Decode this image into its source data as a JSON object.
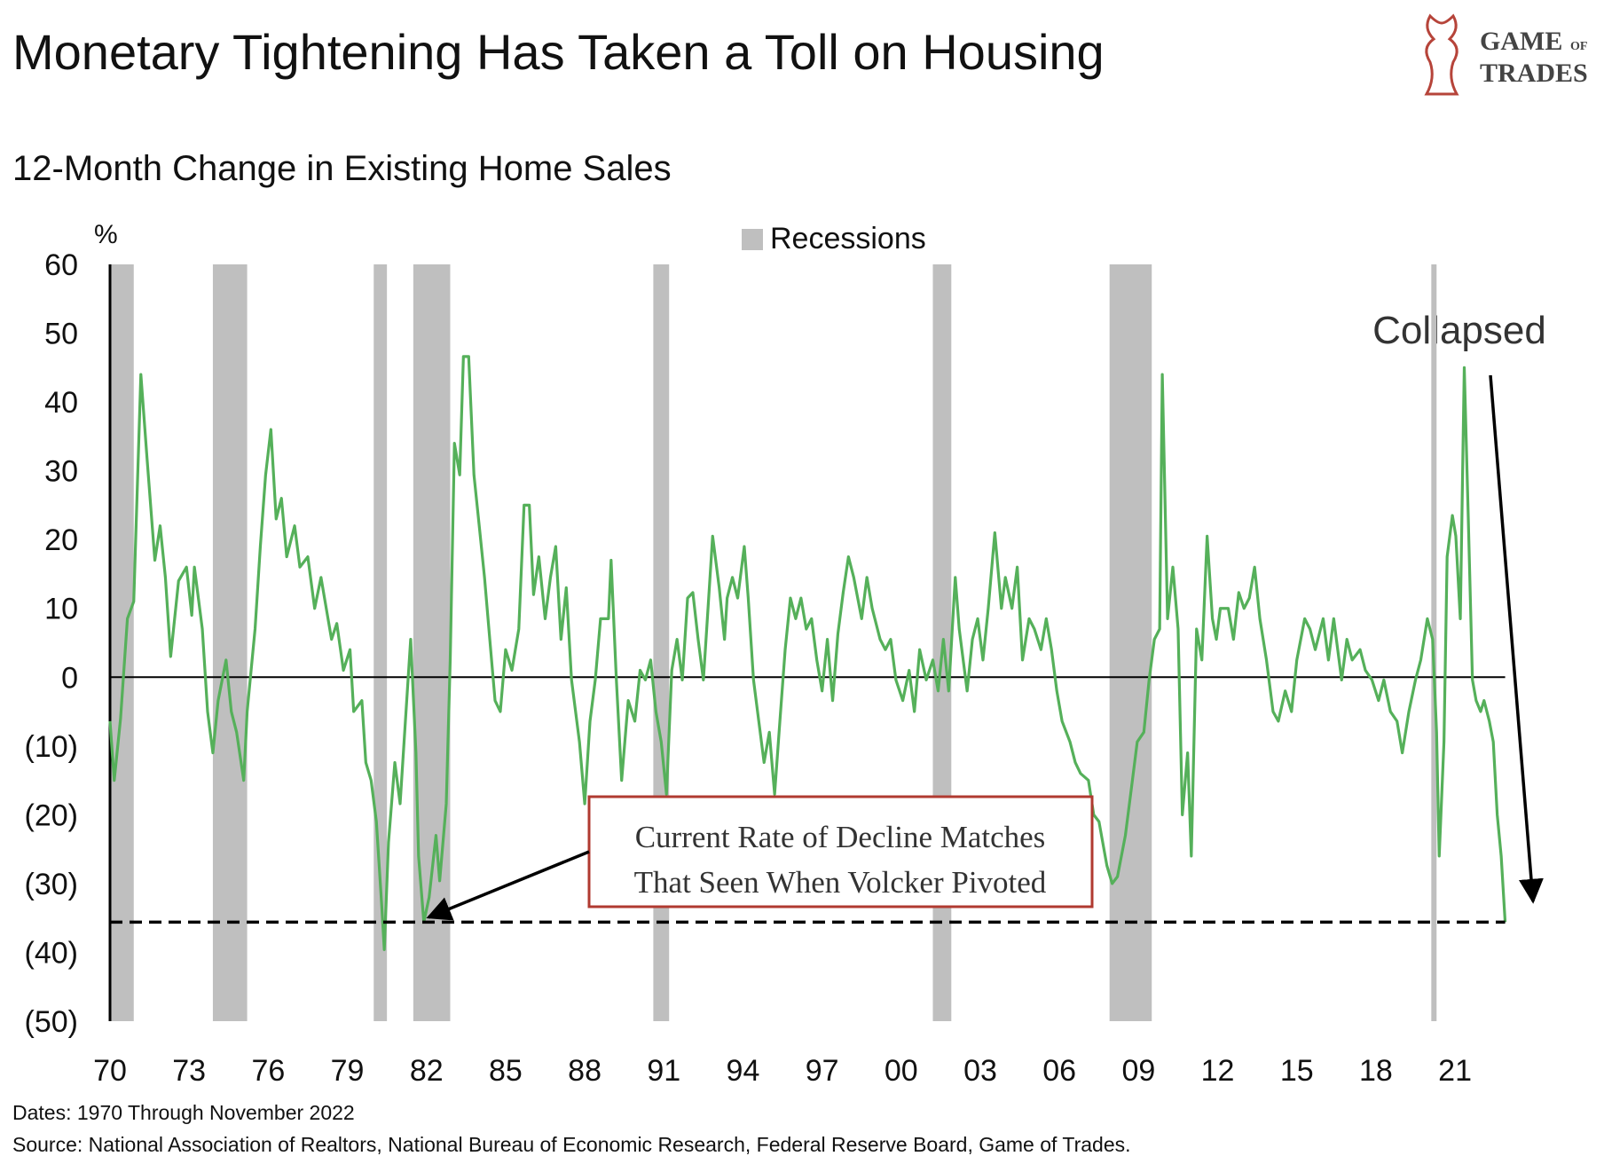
{
  "chart_data": {
    "type": "line",
    "title": "Monetary Tightening Has Taken a Toll on Housing",
    "subtitle": "12-Month Change in Existing Home Sales",
    "y_unit": "%",
    "logo": [
      "GAME",
      "OF",
      "TRADES"
    ],
    "color": "#55b05a",
    "x": [
      1970.0,
      1970.16,
      1970.4,
      1970.66,
      1970.9,
      1971.17,
      1971.4,
      1971.7,
      1971.9,
      1972.1,
      1972.3,
      1972.6,
      1972.9,
      1973.1,
      1973.2,
      1973.5,
      1973.7,
      1973.9,
      1974.1,
      1974.4,
      1974.6,
      1974.8,
      1975.07,
      1975.2,
      1975.5,
      1975.7,
      1975.9,
      1976.1,
      1976.3,
      1976.5,
      1976.7,
      1977.0,
      1977.2,
      1977.5,
      1977.76,
      1978.0,
      1978.2,
      1978.4,
      1978.6,
      1978.85,
      1979.1,
      1979.24,
      1979.55,
      1979.7,
      1979.9,
      1980.1,
      1980.3,
      1980.4,
      1980.56,
      1980.8,
      1981.0,
      1981.2,
      1981.4,
      1981.6,
      1981.7,
      1981.9,
      1982.1,
      1982.36,
      1982.5,
      1982.75,
      1982.9,
      1983.06,
      1983.26,
      1983.4,
      1983.6,
      1983.8,
      1984.0,
      1984.2,
      1984.4,
      1984.6,
      1984.8,
      1985.0,
      1985.24,
      1985.5,
      1985.7,
      1985.9,
      1986.06,
      1986.26,
      1986.5,
      1986.7,
      1986.9,
      1987.1,
      1987.3,
      1987.5,
      1987.8,
      1988.0,
      1988.2,
      1988.4,
      1988.6,
      1988.9,
      1989.0,
      1989.2,
      1989.4,
      1989.65,
      1989.9,
      1990.1,
      1990.3,
      1990.5,
      1990.7,
      1990.9,
      1991.1,
      1991.3,
      1991.5,
      1991.7,
      1991.9,
      1992.1,
      1992.3,
      1992.5,
      1992.65,
      1992.85,
      1993.1,
      1993.3,
      1993.4,
      1993.6,
      1993.8,
      1994.05,
      1994.2,
      1994.4,
      1994.6,
      1994.8,
      1995.0,
      1995.2,
      1995.4,
      1995.6,
      1995.8,
      1996.0,
      1996.2,
      1996.4,
      1996.6,
      1996.8,
      1997.0,
      1997.2,
      1997.4,
      1997.6,
      1997.8,
      1998.0,
      1998.2,
      1998.5,
      1998.7,
      1998.9,
      1999.2,
      1999.4,
      1999.6,
      1999.8,
      2000.06,
      2000.3,
      2000.5,
      2000.7,
      2000.95,
      2001.2,
      2001.4,
      2001.6,
      2001.8,
      2002.05,
      2002.2,
      2002.5,
      2002.7,
      2002.9,
      2003.1,
      2003.3,
      2003.55,
      2003.8,
      2003.95,
      2004.2,
      2004.4,
      2004.6,
      2004.85,
      2005.05,
      2005.3,
      2005.5,
      2005.7,
      2005.9,
      2006.1,
      2006.4,
      2006.6,
      2006.8,
      2007.1,
      2007.3,
      2007.5,
      2007.8,
      2008.0,
      2008.2,
      2008.5,
      2008.7,
      2008.95,
      2009.2,
      2009.4,
      2009.6,
      2009.8,
      2009.9,
      2010.1,
      2010.3,
      2010.5,
      2010.66,
      2010.86,
      2011.0,
      2011.2,
      2011.4,
      2011.6,
      2011.8,
      2011.95,
      2012.1,
      2012.4,
      2012.6,
      2012.8,
      2013.0,
      2013.2,
      2013.4,
      2013.6,
      2013.85,
      2014.1,
      2014.3,
      2014.56,
      2014.8,
      2015.0,
      2015.3,
      2015.5,
      2015.7,
      2016.0,
      2016.2,
      2016.4,
      2016.7,
      2016.9,
      2017.1,
      2017.4,
      2017.6,
      2017.85,
      2018.1,
      2018.3,
      2018.55,
      2018.8,
      2019.0,
      2019.25,
      2019.5,
      2019.7,
      2019.95,
      2020.15,
      2020.3,
      2020.4,
      2020.58,
      2020.7,
      2020.9,
      2021.03,
      2021.2,
      2021.35,
      2021.5,
      2021.66,
      2021.8,
      2021.97,
      2022.1,
      2022.3,
      2022.45,
      2022.6,
      2022.75,
      2022.9
    ],
    "values": [
      -6.4,
      -15,
      -6,
      8.5,
      11,
      44,
      32,
      17,
      22,
      14.5,
      3,
      14,
      16,
      9,
      16,
      7,
      -5,
      -11,
      -3.4,
      2.5,
      -5,
      -8,
      -15,
      -5,
      7,
      19,
      29.4,
      36,
      23,
      26,
      17.5,
      22,
      16,
      17.5,
      10,
      14.5,
      10,
      5.5,
      7.8,
      1,
      4,
      -5,
      -3.4,
      -12.4,
      -15,
      -21,
      -33,
      -39.6,
      -24,
      -12.4,
      -18.4,
      -6.4,
      5.5,
      -11,
      -26,
      -35.6,
      -32,
      -23,
      -29.6,
      -18.4,
      2.5,
      34,
      29.4,
      46.6,
      46.6,
      29.4,
      22,
      14.5,
      5.5,
      -3.4,
      -5,
      4,
      1,
      7,
      25,
      25,
      12,
      17.5,
      8.5,
      14.5,
      19,
      5.5,
      13,
      -0.4,
      -9.4,
      -18.4,
      -6.4,
      -0.4,
      8.5,
      8.5,
      17,
      -0.4,
      -15,
      -3.4,
      -6.4,
      1,
      -0.4,
      2.5,
      -5,
      -9.4,
      -17,
      1,
      5.5,
      -0.4,
      11.5,
      12.3,
      5.5,
      -0.4,
      8.5,
      20.5,
      13,
      5.5,
      11.5,
      14.5,
      11.5,
      19,
      11.5,
      -0.4,
      -6.4,
      -12.4,
      -8,
      -17,
      -6.4,
      4,
      11.5,
      8.5,
      11.5,
      7,
      8.5,
      2.5,
      -2,
      5.5,
      -3.4,
      6.3,
      12.3,
      17.5,
      14.5,
      8.5,
      14.5,
      10,
      5.5,
      4,
      5.5,
      -0.4,
      -3.4,
      1,
      -5,
      4,
      -0.4,
      2.5,
      -2,
      5.5,
      -2,
      14.5,
      7,
      -2,
      5.5,
      8.5,
      2.5,
      10,
      21,
      10,
      14.5,
      10,
      16,
      2.5,
      8.5,
      7,
      4,
      8.5,
      4,
      -2,
      -6.4,
      -9.4,
      -12.4,
      -14,
      -15,
      -20,
      -21,
      -27.4,
      -30,
      -29,
      -23,
      -17,
      -9.4,
      -8,
      -0.4,
      5.5,
      7,
      44,
      8.5,
      16,
      7,
      -20,
      -11,
      -26,
      7,
      2.5,
      20.5,
      8.5,
      5.5,
      10,
      10,
      5.5,
      12.3,
      10,
      11.5,
      16,
      8.5,
      2.5,
      -5,
      -6.4,
      -2,
      -5,
      2.5,
      8.5,
      7,
      4,
      8.5,
      2.5,
      8.5,
      -0.4,
      5.5,
      2.5,
      4,
      1,
      -0.4,
      -3.4,
      -0.4,
      -5,
      -6.4,
      -11,
      -5,
      -0.4,
      2.5,
      8.5,
      5.5,
      -8,
      -26,
      -9.4,
      17.5,
      23.5,
      20.5,
      8.5,
      45,
      23.5,
      -0.4,
      -3.4,
      -5,
      -3.4,
      -6.4,
      -9.4,
      -20,
      -26,
      -35.6
    ],
    "recessions": {
      "name": "Recessions",
      "color": "#bfbfbf",
      "ranges": [
        [
          1970.0,
          1970.9
        ],
        [
          1973.9,
          1975.2
        ],
        [
          1980.0,
          1980.5
        ],
        [
          1981.5,
          1982.9
        ],
        [
          1990.6,
          1991.2
        ],
        [
          2001.2,
          2001.9
        ],
        [
          2007.9,
          2009.5
        ],
        [
          2020.1,
          2020.3
        ]
      ]
    },
    "reference_line": -35.6,
    "xlim": [
      1970,
      2025
    ],
    "ylim": [
      -50,
      60
    ],
    "xticks": [
      {
        "value": 1970,
        "label": "70"
      },
      {
        "value": 1973,
        "label": "73"
      },
      {
        "value": 1976,
        "label": "76"
      },
      {
        "value": 1979,
        "label": "79"
      },
      {
        "value": 1982,
        "label": "82"
      },
      {
        "value": 1985,
        "label": "85"
      },
      {
        "value": 1988,
        "label": "88"
      },
      {
        "value": 1991,
        "label": "91"
      },
      {
        "value": 1994,
        "label": "94"
      },
      {
        "value": 1997,
        "label": "97"
      },
      {
        "value": 2000,
        "label": "00"
      },
      {
        "value": 2003,
        "label": "03"
      },
      {
        "value": 2006,
        "label": "06"
      },
      {
        "value": 2009,
        "label": "09"
      },
      {
        "value": 2012,
        "label": "12"
      },
      {
        "value": 2015,
        "label": "15"
      },
      {
        "value": 2018,
        "label": "18"
      },
      {
        "value": 2021,
        "label": "21"
      }
    ],
    "yticks": [
      60,
      50,
      40,
      30,
      20,
      10,
      0,
      {
        "value": -10,
        "label": "(10)"
      },
      {
        "value": -20,
        "label": "(20)"
      },
      {
        "value": -30,
        "label": "(30)"
      },
      {
        "value": -40,
        "label": "(40)"
      },
      {
        "value": -50,
        "label": "(50)"
      }
    ],
    "annotations": [
      "Collapsed",
      "Current Rate of Decline Matches",
      "That Seen When Volcker Pivoted"
    ],
    "notes": [
      "Dates: 1970 Through  November 2022",
      "Source: National  Association of Realtors, National  Bureau  of Economic Research, Federal Reserve Board, Game of Trades."
    ]
  }
}
